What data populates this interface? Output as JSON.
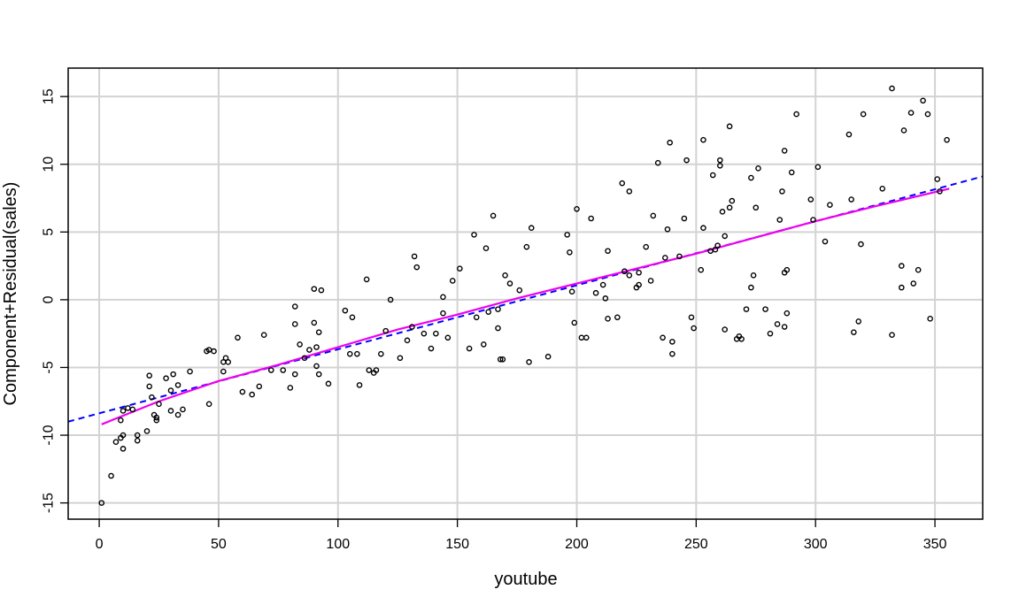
{
  "chart_data": {
    "type": "scatter",
    "xlabel": "youtube",
    "ylabel": "Component+Residual(sales)",
    "xlim": [
      -13,
      370
    ],
    "ylim": [
      -16.2,
      17.1
    ],
    "x_ticks": [
      0,
      50,
      100,
      150,
      200,
      250,
      300,
      350
    ],
    "y_ticks": [
      -15,
      -10,
      -5,
      0,
      5,
      10,
      15
    ],
    "grid": true,
    "colors": {
      "points": "#000000",
      "linear_fit": "#0000ff",
      "smooth": "#ee00ee",
      "grid": "#d3d3d3"
    },
    "linear_fit": {
      "x": [
        -13,
        370
      ],
      "y": [
        -9.0,
        9.1
      ]
    },
    "smooth_fit": {
      "x": [
        1,
        25,
        50,
        75,
        100,
        125,
        150,
        175,
        200,
        225,
        250,
        275,
        300,
        325,
        356
      ],
      "y": [
        -9.2,
        -7.5,
        -6.0,
        -4.8,
        -3.5,
        -2.2,
        -1.1,
        0.1,
        1.2,
        2.3,
        3.4,
        4.6,
        5.8,
        6.9,
        8.2
      ]
    },
    "points": [
      [
        1,
        -15.0
      ],
      [
        5,
        -13.0
      ],
      [
        7,
        -10.5
      ],
      [
        9,
        -10.2
      ],
      [
        10,
        -10.0
      ],
      [
        10,
        -11.0
      ],
      [
        9,
        -8.9
      ],
      [
        10,
        -8.2
      ],
      [
        12,
        -8.0
      ],
      [
        14,
        -8.1
      ],
      [
        16,
        -10.0
      ],
      [
        16,
        -10.4
      ],
      [
        20,
        -9.7
      ],
      [
        21,
        -6.4
      ],
      [
        21,
        -5.6
      ],
      [
        22,
        -7.2
      ],
      [
        23,
        -8.5
      ],
      [
        24,
        -8.9
      ],
      [
        24,
        -8.7
      ],
      [
        25,
        -7.7
      ],
      [
        28,
        -5.8
      ],
      [
        30,
        -6.7
      ],
      [
        31,
        -5.5
      ],
      [
        30,
        -8.2
      ],
      [
        33,
        -6.3
      ],
      [
        33,
        -8.5
      ],
      [
        35,
        -8.1
      ],
      [
        38,
        -5.3
      ],
      [
        45,
        -3.8
      ],
      [
        46,
        -7.7
      ],
      [
        46,
        -3.7
      ],
      [
        48,
        -3.8
      ],
      [
        52,
        -5.3
      ],
      [
        52,
        -4.6
      ],
      [
        53,
        -4.3
      ],
      [
        54,
        -4.6
      ],
      [
        58,
        -2.8
      ],
      [
        60,
        -6.8
      ],
      [
        64,
        -7.0
      ],
      [
        67,
        -6.4
      ],
      [
        69,
        -2.6
      ],
      [
        72,
        -5.2
      ],
      [
        77,
        -5.2
      ],
      [
        80,
        -6.5
      ],
      [
        82,
        -5.5
      ],
      [
        82,
        -1.8
      ],
      [
        82,
        -0.5
      ],
      [
        84,
        -3.3
      ],
      [
        86,
        -4.3
      ],
      [
        88,
        -3.7
      ],
      [
        90,
        0.8
      ],
      [
        90,
        -1.7
      ],
      [
        91,
        -3.5
      ],
      [
        91,
        -4.9
      ],
      [
        92,
        -5.5
      ],
      [
        92,
        -2.4
      ],
      [
        93,
        0.7
      ],
      [
        96,
        -6.2
      ],
      [
        103,
        -0.8
      ],
      [
        105,
        -4.0
      ],
      [
        106,
        -1.3
      ],
      [
        108,
        -4.0
      ],
      [
        109,
        -6.3
      ],
      [
        112,
        1.5
      ],
      [
        113,
        -5.2
      ],
      [
        115,
        -5.4
      ],
      [
        116,
        -5.2
      ],
      [
        118,
        -4.0
      ],
      [
        120,
        -2.3
      ],
      [
        122,
        0.0
      ],
      [
        126,
        -4.3
      ],
      [
        129,
        -3.0
      ],
      [
        131,
        -2.0
      ],
      [
        132,
        3.2
      ],
      [
        133,
        2.4
      ],
      [
        136,
        -2.5
      ],
      [
        139,
        -3.6
      ],
      [
        141,
        -2.5
      ],
      [
        144,
        -1.0
      ],
      [
        144,
        0.2
      ],
      [
        146,
        -2.8
      ],
      [
        148,
        1.4
      ],
      [
        151,
        2.3
      ],
      [
        155,
        -3.6
      ],
      [
        157,
        4.8
      ],
      [
        158,
        -1.3
      ],
      [
        161,
        -3.3
      ],
      [
        162,
        3.8
      ],
      [
        163,
        -0.9
      ],
      [
        165,
        6.2
      ],
      [
        167,
        -0.7
      ],
      [
        167,
        -2.1
      ],
      [
        168,
        -4.4
      ],
      [
        169,
        -4.4
      ],
      [
        170,
        1.8
      ],
      [
        172,
        1.2
      ],
      [
        176,
        0.7
      ],
      [
        179,
        3.9
      ],
      [
        180,
        -4.6
      ],
      [
        181,
        5.3
      ],
      [
        188,
        -4.2
      ],
      [
        196,
        4.8
      ],
      [
        197,
        3.5
      ],
      [
        198,
        0.6
      ],
      [
        199,
        -1.7
      ],
      [
        200,
        6.7
      ],
      [
        202,
        -2.8
      ],
      [
        204,
        -2.8
      ],
      [
        206,
        6.0
      ],
      [
        208,
        0.5
      ],
      [
        211,
        1.1
      ],
      [
        212,
        0.1
      ],
      [
        213,
        -1.4
      ],
      [
        213,
        3.6
      ],
      [
        217,
        -1.3
      ],
      [
        219,
        8.6
      ],
      [
        220,
        2.1
      ],
      [
        222,
        1.8
      ],
      [
        222,
        8.0
      ],
      [
        225,
        0.9
      ],
      [
        226,
        1.1
      ],
      [
        226,
        2.0
      ],
      [
        229,
        3.9
      ],
      [
        231,
        1.4
      ],
      [
        232,
        6.2
      ],
      [
        234,
        10.1
      ],
      [
        236,
        -2.8
      ],
      [
        237,
        3.1
      ],
      [
        238,
        5.2
      ],
      [
        239,
        11.6
      ],
      [
        240,
        -3.1
      ],
      [
        240,
        -4.0
      ],
      [
        243,
        3.2
      ],
      [
        245,
        6.0
      ],
      [
        246,
        10.3
      ],
      [
        248,
        -1.3
      ],
      [
        249,
        -2.1
      ],
      [
        252,
        2.2
      ],
      [
        253,
        5.3
      ],
      [
        253,
        11.8
      ],
      [
        256,
        3.6
      ],
      [
        257,
        9.2
      ],
      [
        258,
        3.7
      ],
      [
        259,
        4.0
      ],
      [
        260,
        10.3
      ],
      [
        260,
        9.9
      ],
      [
        261,
        6.5
      ],
      [
        262,
        -2.2
      ],
      [
        262,
        4.7
      ],
      [
        264,
        6.8
      ],
      [
        264,
        12.8
      ],
      [
        265,
        7.3
      ],
      [
        267,
        -2.9
      ],
      [
        268,
        -2.7
      ],
      [
        269,
        -2.9
      ],
      [
        271,
        -0.7
      ],
      [
        273,
        0.9
      ],
      [
        273,
        9.0
      ],
      [
        274,
        1.8
      ],
      [
        275,
        6.8
      ],
      [
        276,
        9.7
      ],
      [
        279,
        -0.7
      ],
      [
        281,
        -2.5
      ],
      [
        284,
        -1.8
      ],
      [
        285,
        5.9
      ],
      [
        286,
        8.0
      ],
      [
        287,
        -2.0
      ],
      [
        287,
        2.0
      ],
      [
        288,
        2.2
      ],
      [
        287,
        11.0
      ],
      [
        288,
        -1.0
      ],
      [
        290,
        9.4
      ],
      [
        292,
        13.7
      ],
      [
        298,
        7.4
      ],
      [
        299,
        5.9
      ],
      [
        301,
        9.8
      ],
      [
        304,
        4.3
      ],
      [
        306,
        7.0
      ],
      [
        314,
        12.2
      ],
      [
        315,
        7.4
      ],
      [
        316,
        -2.4
      ],
      [
        318,
        -1.6
      ],
      [
        319,
        4.1
      ],
      [
        320,
        13.7
      ],
      [
        328,
        8.2
      ],
      [
        332,
        15.6
      ],
      [
        332,
        -2.6
      ],
      [
        336,
        0.9
      ],
      [
        336,
        2.5
      ],
      [
        337,
        12.5
      ],
      [
        340,
        13.8
      ],
      [
        341,
        1.2
      ],
      [
        343,
        2.2
      ],
      [
        345,
        14.7
      ],
      [
        347,
        13.7
      ],
      [
        348,
        -1.4
      ],
      [
        351,
        8.9
      ],
      [
        352,
        8.0
      ],
      [
        355,
        11.8
      ]
    ]
  }
}
